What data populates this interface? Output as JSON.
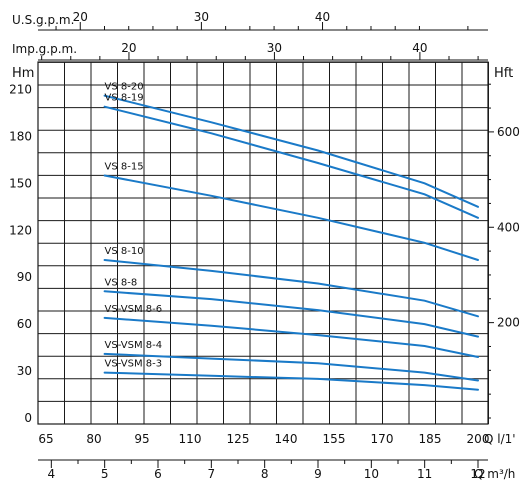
{
  "chart_data": {
    "type": "line",
    "title": "",
    "xlabel": "Q l/1'",
    "ylabel": "Hm",
    "xlim": [
      65,
      200
    ],
    "ylim": [
      0,
      225
    ],
    "grid": true,
    "x_ticks": [
      "65",
      "80",
      "95",
      "110",
      "125",
      "140",
      "155",
      "170",
      "185",
      "200"
    ],
    "y_ticks": [
      "0",
      "30",
      "60",
      "90",
      "120",
      "150",
      "180",
      "210"
    ],
    "secondary_axes": {
      "usgpm": {
        "label": "U.S.g.p.m.",
        "ticks": [
          20,
          30,
          40
        ]
      },
      "impgpm": {
        "label": "Imp.g.p.m.",
        "ticks": [
          20,
          30,
          40
        ]
      },
      "hft": {
        "label": "Hft",
        "ticks": [
          200,
          400,
          600
        ]
      },
      "m3h": {
        "label": "Q m³/h",
        "ticks": [
          4,
          5,
          6,
          7,
          8,
          9,
          10,
          11,
          12
        ]
      }
    },
    "series": [
      {
        "name": "VS 8-20",
        "x": [
          83.3,
          116.7,
          150,
          183.3,
          200
        ],
        "y": [
          206,
          189,
          171,
          150,
          135
        ]
      },
      {
        "name": "VS 8-19",
        "x": [
          83.3,
          116.7,
          150,
          183.3,
          200
        ],
        "y": [
          199,
          182,
          163,
          143,
          128
        ]
      },
      {
        "name": "VS 8-15",
        "x": [
          83.3,
          116.7,
          150,
          183.3,
          200
        ],
        "y": [
          155,
          142,
          128,
          112,
          101
        ]
      },
      {
        "name": "VS 8-10",
        "x": [
          83.3,
          116.7,
          150,
          183.3,
          200
        ],
        "y": [
          101,
          94,
          86,
          75,
          65
        ]
      },
      {
        "name": "VS 8-8",
        "x": [
          83.3,
          116.7,
          150,
          183.3,
          200
        ],
        "y": [
          81,
          76,
          69,
          60,
          52
        ]
      },
      {
        "name": "VS-VSM 8-6",
        "x": [
          83.3,
          116.7,
          150,
          183.3,
          200
        ],
        "y": [
          64,
          59,
          53,
          46,
          39
        ]
      },
      {
        "name": "VS-VSM 8-4",
        "x": [
          83.3,
          116.7,
          150,
          183.3,
          200
        ],
        "y": [
          41,
          38,
          35,
          29,
          24
        ]
      },
      {
        "name": "VS-VSM 8-3",
        "x": [
          83.3,
          116.7,
          150,
          183.3,
          200
        ],
        "y": [
          29,
          27,
          25,
          21,
          18
        ]
      }
    ]
  },
  "labels": {
    "hm": "Hm",
    "hft": "Hft",
    "usgpm": "U.S.g.p.m.",
    "impgpm": "Imp.g.p.m.",
    "q_lmin": "Q  l/1'",
    "q_m3h": "Q  m³/h"
  },
  "colors": {
    "curve": "#1a7ac8",
    "grid": "#1a1a1a",
    "axis": "#111111"
  }
}
